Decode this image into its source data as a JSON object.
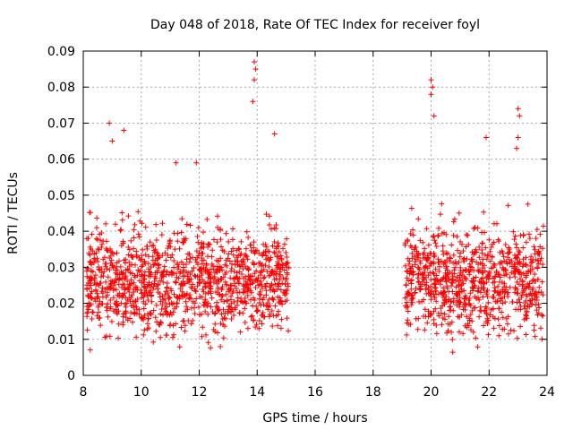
{
  "chart_data": {
    "type": "scatter",
    "title": "Day 048 of 2018, Rate Of TEC Index for receiver foyl",
    "xlabel": "GPS time / hours",
    "ylabel": "ROTI / TECUs",
    "xlim": [
      8,
      24
    ],
    "ylim": [
      0,
      0.09
    ],
    "xticks": [
      "8",
      "10",
      "12",
      "14",
      "16",
      "18",
      "20",
      "22",
      "24"
    ],
    "yticks": [
      "0",
      "0.01",
      "0.02",
      "0.03",
      "0.04",
      "0.05",
      "0.06",
      "0.07",
      "0.08",
      "0.09"
    ],
    "grid": true,
    "marker": "+",
    "series_color": "#ff0000",
    "observed_intervals_hours": [
      [
        8.1,
        15.1
      ],
      [
        19.1,
        23.9
      ]
    ],
    "typical_range": [
      0.005,
      0.045
    ],
    "peak_points": [
      {
        "x": 8.9,
        "y": 0.07
      },
      {
        "x": 9.4,
        "y": 0.068
      },
      {
        "x": 9.0,
        "y": 0.065
      },
      {
        "x": 11.2,
        "y": 0.059
      },
      {
        "x": 11.9,
        "y": 0.059
      },
      {
        "x": 13.9,
        "y": 0.087
      },
      {
        "x": 13.95,
        "y": 0.085
      },
      {
        "x": 13.9,
        "y": 0.082
      },
      {
        "x": 13.85,
        "y": 0.076
      },
      {
        "x": 14.6,
        "y": 0.067
      },
      {
        "x": 20.0,
        "y": 0.082
      },
      {
        "x": 20.05,
        "y": 0.08
      },
      {
        "x": 20.0,
        "y": 0.078
      },
      {
        "x": 20.1,
        "y": 0.072
      },
      {
        "x": 21.9,
        "y": 0.066
      },
      {
        "x": 23.0,
        "y": 0.074
      },
      {
        "x": 23.05,
        "y": 0.072
      },
      {
        "x": 23.0,
        "y": 0.066
      },
      {
        "x": 22.95,
        "y": 0.063
      }
    ]
  }
}
